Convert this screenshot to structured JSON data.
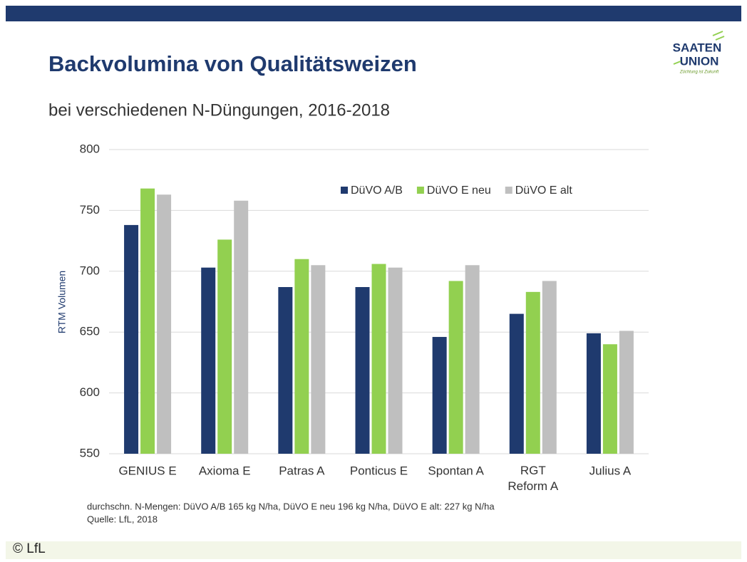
{
  "header": {
    "title": "Backvolumina von Qualitätsweizen",
    "subtitle": "bei verschiedenen N-Düngungen, 2016-2018"
  },
  "logo": {
    "line1": "SAATEN",
    "line2": "UNION",
    "tagline": "Züchtung ist Zukunft"
  },
  "chart_data": {
    "type": "bar",
    "y_label": "RTM Volumen",
    "categories": [
      "GENIUS E",
      "Axioma E",
      "Patras A",
      "Ponticus E",
      "Spontan A",
      "RGT Reform A",
      "Julius A"
    ],
    "series": [
      {
        "name": "DüVO A/B",
        "color": "#1f3a6e",
        "values": [
          738,
          703,
          687,
          687,
          646,
          665,
          649
        ]
      },
      {
        "name": "DüVO E neu",
        "color": "#92d050",
        "values": [
          768,
          726,
          710,
          706,
          692,
          683,
          640
        ]
      },
      {
        "name": "DüVO E alt",
        "color": "#bfbfbf",
        "values": [
          763,
          758,
          705,
          703,
          705,
          692,
          651
        ]
      }
    ],
    "ylim": [
      550,
      800
    ],
    "yticks": [
      550,
      600,
      650,
      700,
      750,
      800
    ],
    "grid": true,
    "legend": "top-right"
  },
  "footnote": {
    "line1": "durchschn. N-Mengen:  DüVO A/B 165 kg N/ha, DüVO E neu 196 kg N/ha, DüVO E alt: 227 kg N/ha",
    "line2": "Quelle: LfL, 2018"
  },
  "copyright": "© LfL"
}
